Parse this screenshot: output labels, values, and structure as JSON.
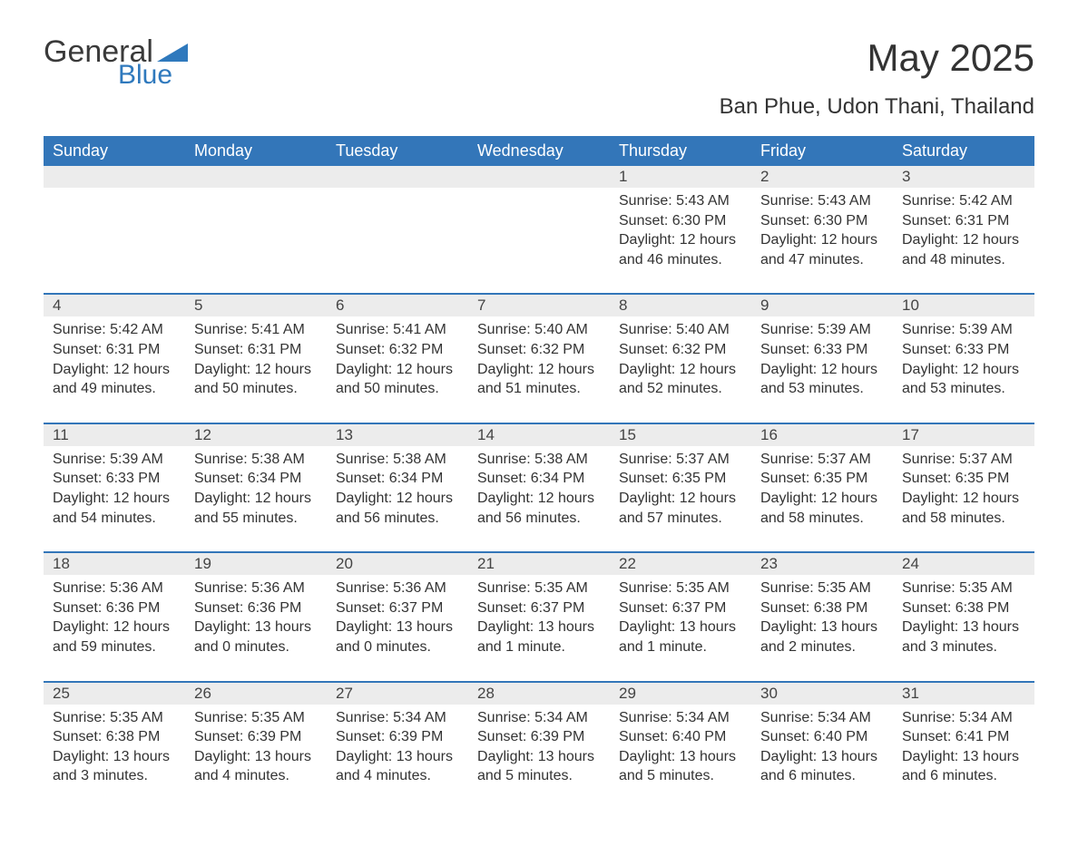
{
  "brand": {
    "part1": "General",
    "part2": "Blue",
    "accent": "#2f79bd"
  },
  "title": "May 2025",
  "location": "Ban Phue, Udon Thani, Thailand",
  "colors": {
    "header_bg": "#3376b9",
    "header_fg": "#ffffff",
    "cell_divider": "#3376b9",
    "daynum_bg": "#ececec",
    "text": "#333333",
    "page_bg": "#ffffff"
  },
  "weekdays": [
    "Sunday",
    "Monday",
    "Tuesday",
    "Wednesday",
    "Thursday",
    "Friday",
    "Saturday"
  ],
  "weeks": [
    [
      null,
      null,
      null,
      null,
      {
        "n": "1",
        "sr": "5:43 AM",
        "ss": "6:30 PM",
        "dl": "12 hours and 46 minutes."
      },
      {
        "n": "2",
        "sr": "5:43 AM",
        "ss": "6:30 PM",
        "dl": "12 hours and 47 minutes."
      },
      {
        "n": "3",
        "sr": "5:42 AM",
        "ss": "6:31 PM",
        "dl": "12 hours and 48 minutes."
      }
    ],
    [
      {
        "n": "4",
        "sr": "5:42 AM",
        "ss": "6:31 PM",
        "dl": "12 hours and 49 minutes."
      },
      {
        "n": "5",
        "sr": "5:41 AM",
        "ss": "6:31 PM",
        "dl": "12 hours and 50 minutes."
      },
      {
        "n": "6",
        "sr": "5:41 AM",
        "ss": "6:32 PM",
        "dl": "12 hours and 50 minutes."
      },
      {
        "n": "7",
        "sr": "5:40 AM",
        "ss": "6:32 PM",
        "dl": "12 hours and 51 minutes."
      },
      {
        "n": "8",
        "sr": "5:40 AM",
        "ss": "6:32 PM",
        "dl": "12 hours and 52 minutes."
      },
      {
        "n": "9",
        "sr": "5:39 AM",
        "ss": "6:33 PM",
        "dl": "12 hours and 53 minutes."
      },
      {
        "n": "10",
        "sr": "5:39 AM",
        "ss": "6:33 PM",
        "dl": "12 hours and 53 minutes."
      }
    ],
    [
      {
        "n": "11",
        "sr": "5:39 AM",
        "ss": "6:33 PM",
        "dl": "12 hours and 54 minutes."
      },
      {
        "n": "12",
        "sr": "5:38 AM",
        "ss": "6:34 PM",
        "dl": "12 hours and 55 minutes."
      },
      {
        "n": "13",
        "sr": "5:38 AM",
        "ss": "6:34 PM",
        "dl": "12 hours and 56 minutes."
      },
      {
        "n": "14",
        "sr": "5:38 AM",
        "ss": "6:34 PM",
        "dl": "12 hours and 56 minutes."
      },
      {
        "n": "15",
        "sr": "5:37 AM",
        "ss": "6:35 PM",
        "dl": "12 hours and 57 minutes."
      },
      {
        "n": "16",
        "sr": "5:37 AM",
        "ss": "6:35 PM",
        "dl": "12 hours and 58 minutes."
      },
      {
        "n": "17",
        "sr": "5:37 AM",
        "ss": "6:35 PM",
        "dl": "12 hours and 58 minutes."
      }
    ],
    [
      {
        "n": "18",
        "sr": "5:36 AM",
        "ss": "6:36 PM",
        "dl": "12 hours and 59 minutes."
      },
      {
        "n": "19",
        "sr": "5:36 AM",
        "ss": "6:36 PM",
        "dl": "13 hours and 0 minutes."
      },
      {
        "n": "20",
        "sr": "5:36 AM",
        "ss": "6:37 PM",
        "dl": "13 hours and 0 minutes."
      },
      {
        "n": "21",
        "sr": "5:35 AM",
        "ss": "6:37 PM",
        "dl": "13 hours and 1 minute."
      },
      {
        "n": "22",
        "sr": "5:35 AM",
        "ss": "6:37 PM",
        "dl": "13 hours and 1 minute."
      },
      {
        "n": "23",
        "sr": "5:35 AM",
        "ss": "6:38 PM",
        "dl": "13 hours and 2 minutes."
      },
      {
        "n": "24",
        "sr": "5:35 AM",
        "ss": "6:38 PM",
        "dl": "13 hours and 3 minutes."
      }
    ],
    [
      {
        "n": "25",
        "sr": "5:35 AM",
        "ss": "6:38 PM",
        "dl": "13 hours and 3 minutes."
      },
      {
        "n": "26",
        "sr": "5:35 AM",
        "ss": "6:39 PM",
        "dl": "13 hours and 4 minutes."
      },
      {
        "n": "27",
        "sr": "5:34 AM",
        "ss": "6:39 PM",
        "dl": "13 hours and 4 minutes."
      },
      {
        "n": "28",
        "sr": "5:34 AM",
        "ss": "6:39 PM",
        "dl": "13 hours and 5 minutes."
      },
      {
        "n": "29",
        "sr": "5:34 AM",
        "ss": "6:40 PM",
        "dl": "13 hours and 5 minutes."
      },
      {
        "n": "30",
        "sr": "5:34 AM",
        "ss": "6:40 PM",
        "dl": "13 hours and 6 minutes."
      },
      {
        "n": "31",
        "sr": "5:34 AM",
        "ss": "6:41 PM",
        "dl": "13 hours and 6 minutes."
      }
    ]
  ],
  "labels": {
    "sunrise_prefix": "Sunrise: ",
    "sunset_prefix": "Sunset: ",
    "daylight_prefix": "Daylight: "
  }
}
